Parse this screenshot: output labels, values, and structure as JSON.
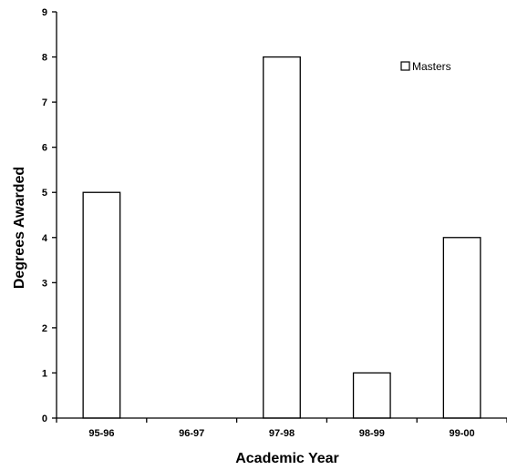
{
  "chart_data": {
    "type": "bar",
    "categories": [
      "95-96",
      "96-97",
      "97-98",
      "98-99",
      "99-00"
    ],
    "series": [
      {
        "name": "Masters",
        "values": [
          5,
          0,
          8,
          1,
          4
        ]
      }
    ],
    "xlabel": "Academic Year",
    "ylabel": "Degrees Awarded",
    "ylim": [
      0,
      9
    ],
    "yticks": [
      0,
      1,
      2,
      3,
      4,
      5,
      6,
      7,
      8,
      9
    ],
    "grid": false,
    "legend_position": "top-right",
    "colors": {
      "bar_fill": "#ffffff",
      "bar_stroke": "#000000"
    }
  }
}
